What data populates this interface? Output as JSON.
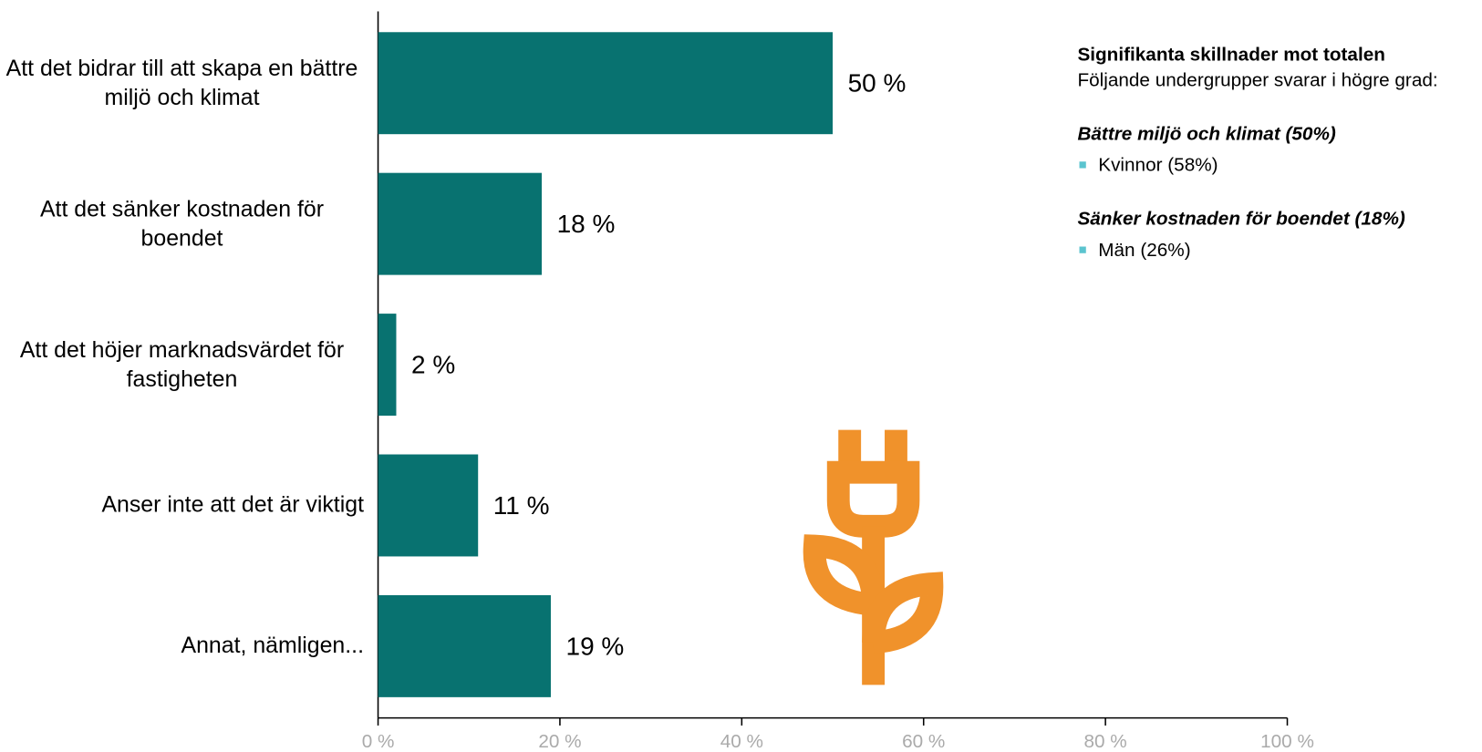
{
  "chart_data": {
    "type": "bar",
    "orientation": "horizontal",
    "categories": [
      "Att det bidrar till att skapa en bättre miljö och klimat",
      "Att det sänker kostnaden för boendet",
      "Att det höjer marknadsvärdet för fastigheten",
      "Anser inte att det är viktigt",
      "Annat, nämligen..."
    ],
    "values": [
      50,
      18,
      2,
      11,
      19
    ],
    "value_labels": [
      "50 %",
      "18 %",
      "2 %",
      "11 %",
      "19 %"
    ],
    "color": "#087270",
    "xlim": [
      0,
      100
    ],
    "xticks": [
      {
        "value": 0,
        "label": "0 %"
      },
      {
        "value": 20,
        "label": "20 %"
      },
      {
        "value": 40,
        "label": "40 %"
      },
      {
        "value": 60,
        "label": "60 %"
      },
      {
        "value": 80,
        "label": "80 %"
      },
      {
        "value": 100,
        "label": "100 %"
      }
    ],
    "grid": false
  },
  "panel": {
    "title": "Signifikanta skillnader mot totalen",
    "text": "Följande undergrupper svarar i högre grad:",
    "groups": [
      {
        "heading": "Bättre miljö och klimat (50%)",
        "items": [
          "Kvinnor (58%)"
        ]
      },
      {
        "heading": "Sänker kostnaden för boendet (18%)",
        "items": [
          "Män (26%)"
        ]
      }
    ]
  }
}
